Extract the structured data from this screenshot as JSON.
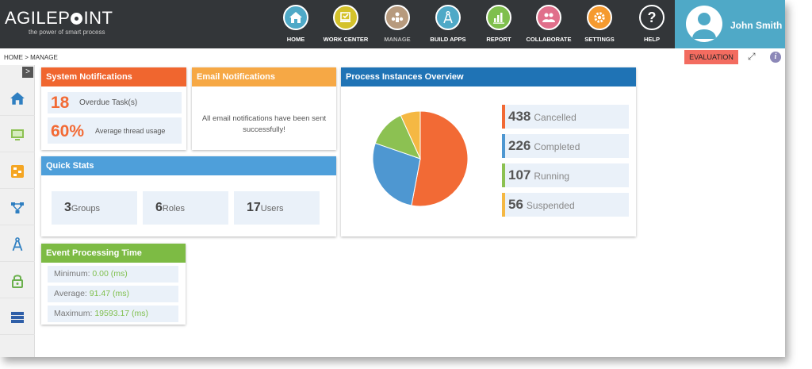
{
  "brand": {
    "name_part1": "AGILEP",
    "name_part2": "INT",
    "tagline": "the power of smart process"
  },
  "nav": [
    {
      "label": "HOME",
      "icon": "home-icon",
      "color": "#4fa9c7"
    },
    {
      "label": "WORK CENTER",
      "icon": "workcenter-icon",
      "color": "#d4c22b"
    },
    {
      "label": "MANAGE",
      "icon": "manage-icon",
      "color": "#b79a7d"
    },
    {
      "label": "BUILD APPS",
      "icon": "compass-icon",
      "color": "#4fa9c7"
    },
    {
      "label": "REPORT",
      "icon": "report-icon",
      "color": "#7fbf4d"
    },
    {
      "label": "COLLABORATE",
      "icon": "collaborate-icon",
      "color": "#e06f8b"
    },
    {
      "label": "SETTINGS",
      "icon": "gear-icon",
      "color": "#f59a2f"
    },
    {
      "label": "HELP",
      "icon": "help-icon",
      "color": "#333639"
    }
  ],
  "user": {
    "name": "John Smith"
  },
  "breadcrumb": "HOME > MANAGE",
  "evaluation_label": "EVALUATION",
  "sidebar": {
    "toggle": ">"
  },
  "system_notifications": {
    "title": "System Notifications",
    "overdue_value": "18",
    "overdue_label": "Overdue Task(s)",
    "thread_value": "60%",
    "thread_label": "Average thread usage"
  },
  "email_notifications": {
    "title": "Email Notifications",
    "message": "All email notifications have been sent successfully!"
  },
  "process_overview": {
    "title": "Process Instances Overview",
    "items": [
      {
        "value": "438",
        "label": "Cancelled",
        "color": "#f26a35"
      },
      {
        "value": "226",
        "label": "Completed",
        "color": "#4e97d1"
      },
      {
        "value": "107",
        "label": "Running",
        "color": "#8cc152"
      },
      {
        "value": "56",
        "label": "Suspended",
        "color": "#f5b843"
      }
    ]
  },
  "quick_stats": {
    "title": "Quick Stats",
    "items": [
      {
        "value": "3",
        "label": "Groups"
      },
      {
        "value": "6",
        "label": "Roles"
      },
      {
        "value": "17",
        "label": "Users"
      }
    ]
  },
  "event_processing": {
    "title": "Event Processing Time",
    "minimum_label": "Minimum: ",
    "minimum_value": "0.00 (ms)",
    "average_label": "Average: ",
    "average_value": "91.47 (ms)",
    "maximum_label": "Maximum: ",
    "maximum_value": "19593.17 (ms)"
  },
  "chart_data": {
    "type": "pie",
    "categories": [
      "Cancelled",
      "Completed",
      "Running",
      "Suspended"
    ],
    "values": [
      438,
      226,
      107,
      56
    ],
    "colors": [
      "#f26a35",
      "#4e97d1",
      "#8cc152",
      "#f5b843"
    ]
  }
}
